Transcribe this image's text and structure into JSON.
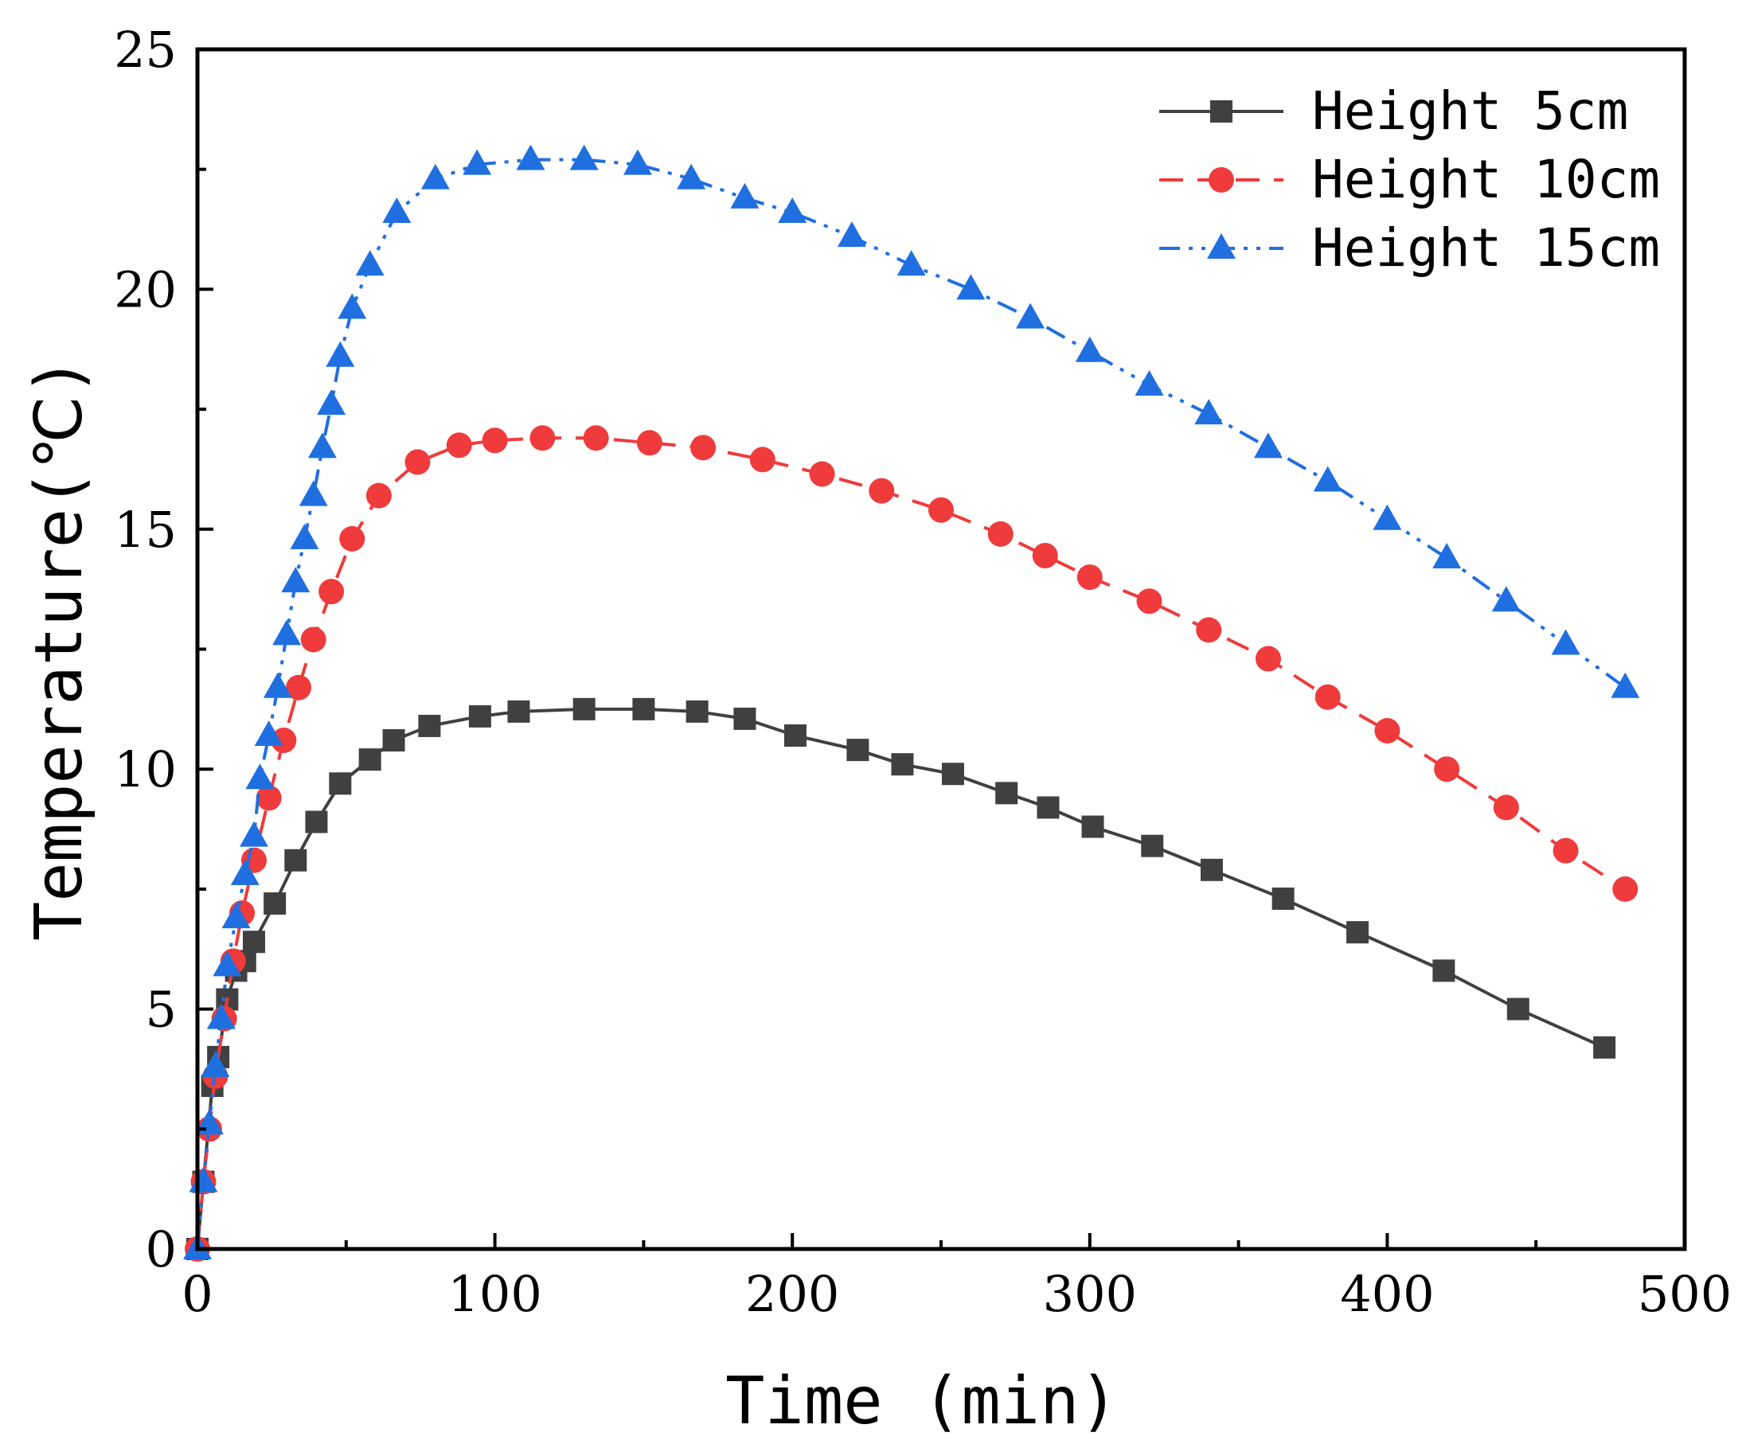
{
  "chart_data": {
    "type": "line",
    "title": "",
    "xlabel": "Time (min)",
    "ylabel": "Temperature(℃)",
    "xlim": [
      0,
      500
    ],
    "ylim": [
      0,
      25
    ],
    "xticks": [
      0,
      100,
      200,
      300,
      400,
      500
    ],
    "yticks": [
      0,
      5,
      10,
      15,
      20,
      25
    ],
    "x_tick_labels": [
      "0",
      "100",
      "200",
      "300",
      "400",
      "500"
    ],
    "y_tick_labels": [
      "0",
      "5",
      "10",
      "15",
      "20",
      "25"
    ],
    "grid": false,
    "legend_position": "top-right",
    "series": [
      {
        "name": "Height 5cm",
        "color": "#404040",
        "marker": "square",
        "line_style": "solid",
        "x": [
          0,
          2,
          5,
          7,
          10,
          13,
          16,
          19,
          26,
          33,
          40,
          48,
          58,
          66,
          78,
          95,
          108,
          130,
          150,
          168,
          184,
          201,
          222,
          237,
          254,
          272,
          286,
          301,
          321,
          341,
          365,
          390,
          419,
          444,
          473
        ],
        "y": [
          0,
          1.4,
          3.4,
          4.0,
          5.2,
          5.8,
          6.0,
          6.4,
          7.2,
          8.1,
          8.9,
          9.7,
          10.2,
          10.6,
          10.9,
          11.1,
          11.2,
          11.25,
          11.25,
          11.2,
          11.05,
          10.7,
          10.4,
          10.1,
          9.9,
          9.5,
          9.2,
          8.8,
          8.4,
          7.9,
          7.3,
          6.6,
          5.8,
          5.0,
          4.2
        ]
      },
      {
        "name": "Height 10cm",
        "color": "#ef3b3b",
        "marker": "circle",
        "line_style": "dashed",
        "x": [
          0,
          2,
          4,
          6,
          9,
          12,
          15,
          19,
          24,
          29,
          34,
          39,
          45,
          52,
          61,
          74,
          88,
          100,
          116,
          134,
          152,
          170,
          190,
          210,
          230,
          250,
          270,
          285,
          300,
          320,
          340,
          360,
          380,
          400,
          420,
          440,
          460,
          480
        ],
        "y": [
          0,
          1.4,
          2.5,
          3.6,
          4.8,
          6.0,
          7.0,
          8.1,
          9.4,
          10.6,
          11.7,
          12.7,
          13.7,
          14.8,
          15.7,
          16.4,
          16.75,
          16.85,
          16.9,
          16.9,
          16.8,
          16.7,
          16.45,
          16.15,
          15.8,
          15.4,
          14.9,
          14.45,
          14.0,
          13.5,
          12.9,
          12.3,
          11.5,
          10.8,
          10.0,
          9.2,
          8.3,
          7.5
        ]
      },
      {
        "name": "Height 15cm",
        "color": "#1f6fe0",
        "marker": "triangle",
        "line_style": "dash-dot-dot",
        "x": [
          0,
          2,
          4,
          6,
          8,
          10,
          13,
          16,
          19,
          21,
          24,
          27,
          30,
          33,
          36,
          39,
          42,
          45,
          48,
          52,
          58,
          67,
          80,
          94,
          112,
          130,
          148,
          166,
          184,
          200,
          220,
          240,
          260,
          280,
          300,
          320,
          340,
          360,
          380,
          400,
          420,
          440,
          460,
          480
        ],
        "y": [
          0,
          1.4,
          2.6,
          3.8,
          4.8,
          5.9,
          6.9,
          7.8,
          8.6,
          9.8,
          10.7,
          11.7,
          12.8,
          13.9,
          14.8,
          15.7,
          16.7,
          17.6,
          18.6,
          19.6,
          20.5,
          21.6,
          22.3,
          22.6,
          22.7,
          22.7,
          22.6,
          22.3,
          21.9,
          21.6,
          21.1,
          20.5,
          20.0,
          19.4,
          18.7,
          18.0,
          17.4,
          16.7,
          16.0,
          15.2,
          14.4,
          13.5,
          12.6,
          11.7
        ]
      }
    ]
  }
}
